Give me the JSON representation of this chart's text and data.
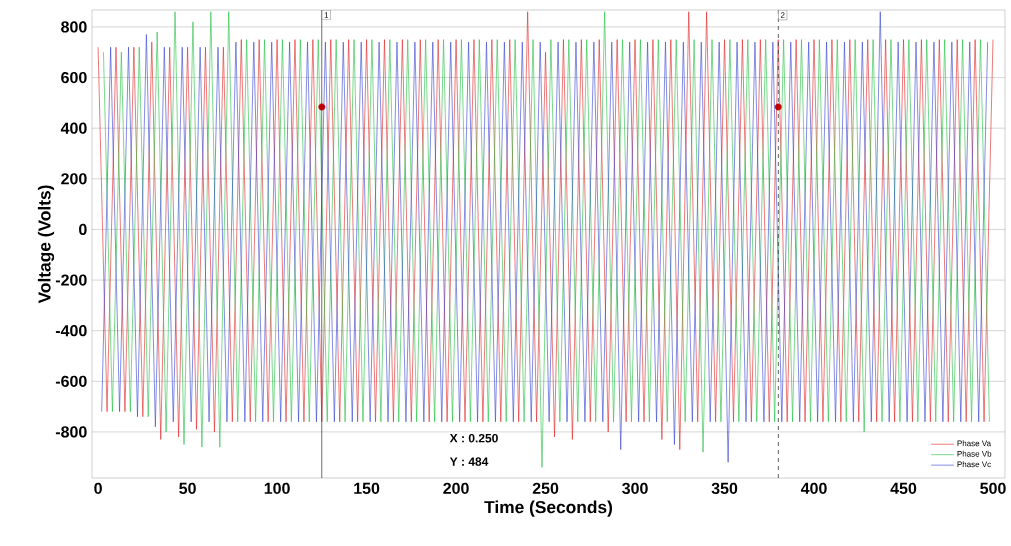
{
  "chart_data": {
    "type": "line",
    "xlabel": "Time (Seconds)",
    "ylabel": "Voltage (Volts)",
    "xlim": [
      -3.4,
      506.7
    ],
    "ylim": [
      -982,
      867
    ],
    "xticks": [
      0,
      50,
      100,
      150,
      200,
      250,
      300,
      350,
      400,
      450,
      500
    ],
    "yticks": [
      -800,
      -600,
      -400,
      -200,
      0,
      200,
      400,
      600,
      800
    ],
    "grid": "y",
    "legend": "bottom right",
    "series": [
      {
        "name": "Phase Va",
        "color": "#e02020",
        "x": [
          0,
          5,
          10,
          15,
          20,
          25,
          30,
          35,
          40,
          45,
          50,
          55,
          60,
          65,
          70,
          75,
          80,
          85,
          90,
          95,
          100,
          105,
          110,
          115,
          120,
          125,
          130,
          135,
          140,
          145,
          150,
          155,
          160,
          165,
          170,
          175,
          180,
          185,
          190,
          195,
          200,
          205,
          210,
          215,
          220,
          225,
          230,
          235,
          240,
          245,
          250,
          255,
          260,
          265,
          270,
          275,
          280,
          285,
          290,
          295,
          300,
          305,
          310,
          315,
          320,
          325,
          330,
          335,
          340,
          345,
          350,
          355,
          360,
          365,
          370,
          375,
          380,
          385,
          390,
          395,
          400,
          405,
          410,
          415,
          420,
          425,
          430,
          435,
          440,
          445,
          450,
          455,
          460,
          465,
          470,
          475,
          480,
          485,
          490,
          495,
          500
        ],
        "values": [
          720,
          -720,
          720,
          -720,
          720,
          -740,
          740,
          -830,
          720,
          -820,
          720,
          -790,
          720,
          -800,
          720,
          -760,
          750,
          -760,
          750,
          -760,
          750,
          -760,
          750,
          -760,
          750,
          -760,
          750,
          -760,
          750,
          -760,
          750,
          -760,
          750,
          -760,
          750,
          -760,
          750,
          -760,
          750,
          -760,
          750,
          -760,
          750,
          -760,
          750,
          -760,
          750,
          -760,
          860,
          -760,
          700,
          -820,
          750,
          -830,
          750,
          -760,
          750,
          -800,
          750,
          -760,
          750,
          -760,
          750,
          -830,
          750,
          -870,
          860,
          -760,
          860,
          -760,
          750,
          -760,
          750,
          -760,
          750,
          -760,
          750,
          -760,
          750,
          -760,
          750,
          -760,
          750,
          -760,
          750,
          -760,
          750,
          -760,
          750,
          -760,
          750,
          -760,
          750,
          -760,
          750,
          -760,
          750,
          -760,
          750,
          -760,
          750
        ]
      },
      {
        "name": "Phase Vb",
        "color": "#20c040",
        "x": [
          3,
          8,
          13,
          18,
          23,
          28,
          33,
          38,
          43,
          48,
          53,
          58,
          63,
          68,
          73,
          78,
          83,
          88,
          93,
          98,
          103,
          108,
          113,
          118,
          123,
          128,
          133,
          138,
          143,
          148,
          153,
          158,
          163,
          168,
          173,
          178,
          183,
          188,
          193,
          198,
          203,
          208,
          213,
          218,
          223,
          228,
          233,
          238,
          243,
          248,
          253,
          258,
          263,
          268,
          273,
          278,
          283,
          288,
          293,
          298,
          303,
          308,
          313,
          318,
          323,
          328,
          333,
          338,
          343,
          348,
          353,
          358,
          363,
          368,
          373,
          378,
          383,
          388,
          393,
          398,
          403,
          408,
          413,
          418,
          423,
          428,
          433,
          438,
          443,
          448,
          453,
          458,
          463,
          468,
          473,
          478,
          483,
          488,
          493,
          498
        ],
        "values": [
          700,
          -720,
          700,
          -720,
          720,
          -740,
          780,
          -800,
          860,
          -850,
          820,
          -860,
          860,
          -860,
          860,
          -760,
          750,
          -760,
          750,
          -760,
          750,
          -760,
          750,
          -760,
          750,
          -760,
          750,
          -760,
          750,
          -760,
          750,
          -760,
          750,
          -760,
          750,
          -760,
          750,
          -760,
          750,
          -760,
          750,
          -760,
          750,
          -760,
          750,
          -760,
          750,
          -760,
          750,
          -940,
          750,
          -760,
          750,
          -760,
          750,
          -760,
          860,
          -760,
          750,
          -760,
          750,
          -760,
          750,
          -760,
          750,
          -760,
          750,
          -880,
          750,
          -760,
          750,
          -760,
          750,
          -760,
          750,
          -760,
          750,
          -760,
          750,
          -760,
          750,
          -760,
          750,
          -760,
          750,
          -800,
          750,
          -760,
          750,
          -760,
          750,
          -760,
          750,
          -760,
          750,
          -760,
          750,
          -760,
          750,
          -760
        ]
      },
      {
        "name": "Phase Vc",
        "color": "#3040d0",
        "x": [
          2,
          7,
          12,
          17,
          22,
          27,
          32,
          37,
          42,
          47,
          52,
          57,
          62,
          67,
          72,
          77,
          82,
          87,
          92,
          97,
          102,
          107,
          112,
          117,
          122,
          127,
          132,
          137,
          142,
          147,
          152,
          157,
          162,
          167,
          172,
          177,
          182,
          187,
          192,
          197,
          202,
          207,
          212,
          217,
          222,
          227,
          232,
          237,
          242,
          247,
          252,
          257,
          262,
          267,
          272,
          277,
          282,
          287,
          292,
          297,
          302,
          307,
          312,
          317,
          322,
          327,
          332,
          337,
          342,
          347,
          352,
          357,
          362,
          367,
          372,
          377,
          382,
          387,
          392,
          397,
          402,
          407,
          412,
          417,
          422,
          427,
          432,
          437,
          442,
          447,
          452,
          457,
          462,
          467,
          472,
          477,
          482,
          487,
          492,
          497
        ],
        "values": [
          -720,
          720,
          -720,
          720,
          -740,
          770,
          -780,
          720,
          -760,
          720,
          -760,
          720,
          -760,
          720,
          -760,
          740,
          -760,
          740,
          -760,
          740,
          -760,
          740,
          -760,
          740,
          -760,
          740,
          -760,
          740,
          -760,
          740,
          -760,
          740,
          -760,
          740,
          -760,
          740,
          -760,
          740,
          -760,
          740,
          -760,
          740,
          -760,
          740,
          -760,
          740,
          -760,
          740,
          -760,
          740,
          -760,
          740,
          -760,
          740,
          -760,
          740,
          -760,
          740,
          -870,
          740,
          -760,
          740,
          -760,
          740,
          -850,
          740,
          -760,
          740,
          -760,
          740,
          -920,
          740,
          -760,
          740,
          -760,
          740,
          -760,
          740,
          -760,
          740,
          -760,
          740,
          -760,
          740,
          -760,
          740,
          -760,
          860,
          -760,
          740,
          -760,
          740,
          -760,
          740,
          -760,
          740,
          -760,
          740,
          -760,
          740
        ]
      },
      {
        "type": "scatter",
        "color": "#c00000",
        "x": [
          125,
          380
        ],
        "values": [
          484,
          484
        ]
      }
    ],
    "ref_lines": [
      {
        "axis": "x",
        "value": 125,
        "color": "#404040",
        "line_style": "solid"
      },
      {
        "axis": "x",
        "value": 380,
        "color": "#404040",
        "line_style": "dashed"
      }
    ],
    "annotations": [
      {
        "text": "1",
        "x": 125
      },
      {
        "text": "2",
        "x": 380
      },
      "X : 0.250",
      "Y : 484"
    ]
  }
}
